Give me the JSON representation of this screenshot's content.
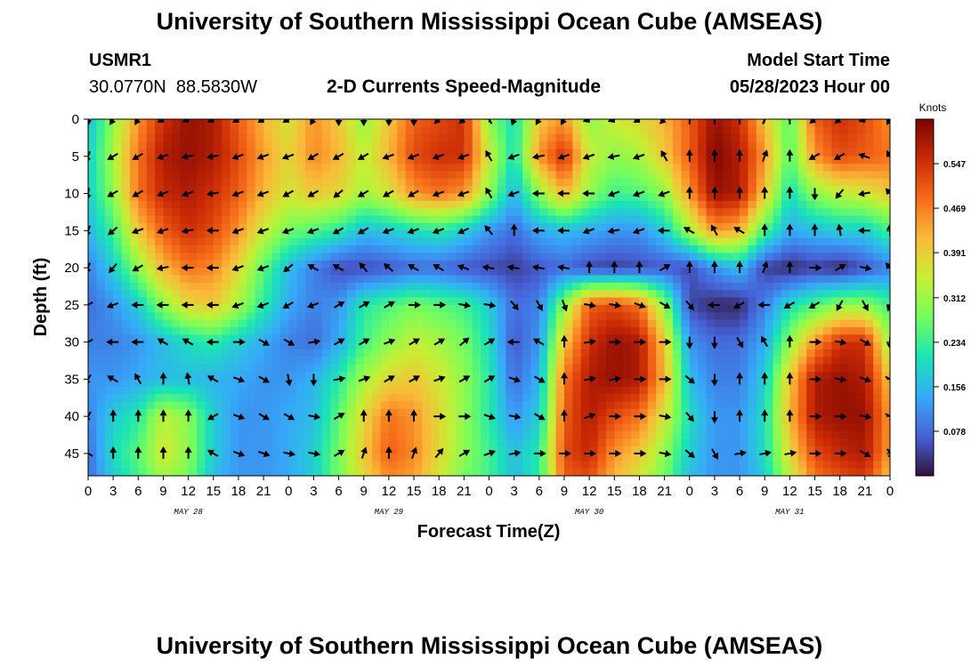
{
  "header": {
    "title": "University of Southern Mississippi Ocean Cube (AMSEAS)",
    "station_name": "USMR1",
    "station_coords": "30.0770N  88.5830W",
    "subtitle": "2-D Currents Speed-Magnitude",
    "model_start_label": "Model Start Time",
    "model_start_value": "05/28/2023 Hour 00"
  },
  "footer": {
    "title": "University of Southern Mississippi Ocean Cube (AMSEAS)"
  },
  "colorbar": {
    "unit": "Knots",
    "ticks": [
      "0.547",
      "0.469",
      "0.391",
      "0.312",
      "0.234",
      "0.156",
      "0.078"
    ],
    "tick_values": [
      0.547,
      0.469,
      0.391,
      0.312,
      0.234,
      0.156,
      0.078
    ],
    "min": 0.0,
    "max": 0.625,
    "colors": [
      "#30123b",
      "#4662d7",
      "#36aaf9",
      "#1ae4b6",
      "#72fe5e",
      "#c7ef34",
      "#faba39",
      "#f66b19",
      "#ca2a04",
      "#7a0403"
    ]
  },
  "chart_data": {
    "type": "heatmap",
    "title": "2-D Currents Speed-Magnitude",
    "xlabel": "Forecast Time(Z)",
    "ylabel": "Depth (ft)",
    "x_hours": [
      0,
      96
    ],
    "xticks": [
      "0",
      "3",
      "6",
      "9",
      "12",
      "15",
      "18",
      "21",
      "0",
      "3",
      "6",
      "9",
      "12",
      "15",
      "18",
      "21",
      "0",
      "3",
      "6",
      "9",
      "12",
      "15",
      "18",
      "21",
      "0",
      "3",
      "6",
      "9",
      "12",
      "15",
      "18",
      "21",
      "0"
    ],
    "day_labels": [
      {
        "label": "MAY 28",
        "hour": 12
      },
      {
        "label": "MAY 29",
        "hour": 36
      },
      {
        "label": "MAY 30",
        "hour": 60
      },
      {
        "label": "MAY 31",
        "hour": 84
      }
    ],
    "ylim": [
      0,
      48
    ],
    "yticks": [
      "0",
      "5",
      "10",
      "15",
      "20",
      "25",
      "30",
      "35",
      "40",
      "45"
    ],
    "ytick_values": [
      0,
      5,
      10,
      15,
      20,
      25,
      30,
      35,
      40,
      45
    ],
    "hours": [
      0,
      3,
      6,
      9,
      12,
      15,
      18,
      21,
      24,
      27,
      30,
      33,
      36,
      39,
      42,
      45,
      48,
      51,
      54,
      57,
      60,
      63,
      66,
      69,
      72,
      75,
      78,
      81,
      84,
      87,
      90,
      93,
      96
    ],
    "depths": [
      0,
      5,
      10,
      15,
      20,
      25,
      30,
      35,
      40,
      45,
      48
    ],
    "speed_knots": [
      [
        0.16,
        0.3,
        0.45,
        0.55,
        0.6,
        0.58,
        0.5,
        0.42,
        0.36,
        0.45,
        0.4,
        0.3,
        0.4,
        0.5,
        0.52,
        0.55,
        0.3,
        0.2,
        0.4,
        0.45,
        0.3,
        0.35,
        0.38,
        0.42,
        0.5,
        0.6,
        0.55,
        0.4,
        0.25,
        0.5,
        0.55,
        0.52,
        0.45
      ],
      [
        0.18,
        0.32,
        0.48,
        0.58,
        0.6,
        0.58,
        0.52,
        0.44,
        0.38,
        0.46,
        0.42,
        0.34,
        0.42,
        0.52,
        0.55,
        0.55,
        0.35,
        0.2,
        0.45,
        0.55,
        0.35,
        0.3,
        0.32,
        0.4,
        0.5,
        0.62,
        0.58,
        0.45,
        0.25,
        0.45,
        0.52,
        0.5,
        0.48
      ],
      [
        0.18,
        0.3,
        0.48,
        0.56,
        0.58,
        0.55,
        0.5,
        0.42,
        0.36,
        0.4,
        0.38,
        0.32,
        0.36,
        0.45,
        0.48,
        0.45,
        0.3,
        0.15,
        0.3,
        0.42,
        0.3,
        0.24,
        0.25,
        0.3,
        0.45,
        0.6,
        0.58,
        0.4,
        0.2,
        0.3,
        0.34,
        0.36,
        0.4
      ],
      [
        0.15,
        0.24,
        0.4,
        0.5,
        0.55,
        0.52,
        0.45,
        0.35,
        0.28,
        0.25,
        0.22,
        0.16,
        0.18,
        0.2,
        0.22,
        0.18,
        0.12,
        0.08,
        0.14,
        0.16,
        0.14,
        0.12,
        0.12,
        0.18,
        0.32,
        0.45,
        0.42,
        0.25,
        0.14,
        0.16,
        0.18,
        0.18,
        0.24
      ],
      [
        0.1,
        0.18,
        0.3,
        0.42,
        0.48,
        0.46,
        0.38,
        0.26,
        0.16,
        0.1,
        0.05,
        0.05,
        0.06,
        0.08,
        0.08,
        0.06,
        0.05,
        0.04,
        0.06,
        0.08,
        0.05,
        0.04,
        0.05,
        0.06,
        0.05,
        0.12,
        0.16,
        0.04,
        0.02,
        0.04,
        0.02,
        0.06,
        0.1
      ],
      [
        0.08,
        0.12,
        0.18,
        0.3,
        0.38,
        0.4,
        0.32,
        0.22,
        0.14,
        0.1,
        0.12,
        0.22,
        0.25,
        0.28,
        0.26,
        0.24,
        0.18,
        0.08,
        0.1,
        0.3,
        0.5,
        0.52,
        0.48,
        0.3,
        0.05,
        0.02,
        0.02,
        0.1,
        0.2,
        0.25,
        0.3,
        0.3,
        0.24
      ],
      [
        0.1,
        0.1,
        0.12,
        0.16,
        0.2,
        0.22,
        0.18,
        0.14,
        0.1,
        0.08,
        0.14,
        0.24,
        0.3,
        0.34,
        0.32,
        0.28,
        0.2,
        0.06,
        0.12,
        0.4,
        0.55,
        0.6,
        0.58,
        0.4,
        0.12,
        0.08,
        0.08,
        0.14,
        0.3,
        0.45,
        0.55,
        0.55,
        0.3
      ],
      [
        0.12,
        0.12,
        0.14,
        0.16,
        0.16,
        0.15,
        0.14,
        0.12,
        0.12,
        0.15,
        0.22,
        0.32,
        0.38,
        0.4,
        0.36,
        0.3,
        0.22,
        0.08,
        0.15,
        0.48,
        0.58,
        0.6,
        0.58,
        0.42,
        0.16,
        0.1,
        0.1,
        0.18,
        0.4,
        0.58,
        0.6,
        0.58,
        0.4
      ],
      [
        0.1,
        0.18,
        0.22,
        0.34,
        0.3,
        0.18,
        0.12,
        0.12,
        0.14,
        0.16,
        0.26,
        0.38,
        0.48,
        0.45,
        0.38,
        0.3,
        0.22,
        0.12,
        0.18,
        0.5,
        0.58,
        0.52,
        0.48,
        0.36,
        0.2,
        0.12,
        0.12,
        0.2,
        0.42,
        0.58,
        0.6,
        0.6,
        0.44
      ],
      [
        0.08,
        0.2,
        0.26,
        0.36,
        0.3,
        0.18,
        0.12,
        0.12,
        0.14,
        0.18,
        0.28,
        0.4,
        0.5,
        0.46,
        0.38,
        0.3,
        0.24,
        0.16,
        0.22,
        0.52,
        0.56,
        0.45,
        0.4,
        0.3,
        0.18,
        0.12,
        0.12,
        0.2,
        0.38,
        0.52,
        0.56,
        0.58,
        0.44
      ],
      [
        0.08,
        0.18,
        0.24,
        0.32,
        0.28,
        0.16,
        0.12,
        0.12,
        0.14,
        0.18,
        0.28,
        0.38,
        0.46,
        0.44,
        0.36,
        0.28,
        0.24,
        0.16,
        0.22,
        0.5,
        0.52,
        0.42,
        0.36,
        0.28,
        0.16,
        0.12,
        0.12,
        0.18,
        0.34,
        0.48,
        0.52,
        0.54,
        0.4
      ]
    ],
    "arrow_depths": [
      0,
      5,
      10,
      15,
      20,
      25,
      30,
      35,
      40,
      45
    ],
    "arrow_directions_deg": [
      [
        180,
        210,
        210,
        240,
        240,
        240,
        240,
        240,
        240,
        210,
        180,
        180,
        180,
        180,
        225,
        225,
        330,
        200,
        210,
        210,
        250,
        250,
        240,
        225,
        0,
        0,
        0,
        20,
        0,
        230,
        230,
        250,
        210
      ],
      [
        200,
        240,
        240,
        250,
        260,
        260,
        250,
        250,
        250,
        240,
        240,
        240,
        250,
        250,
        250,
        250,
        330,
        250,
        260,
        250,
        250,
        260,
        250,
        330,
        0,
        0,
        0,
        20,
        0,
        240,
        240,
        290,
        330
      ],
      [
        190,
        240,
        240,
        250,
        250,
        260,
        250,
        250,
        240,
        240,
        230,
        240,
        240,
        240,
        250,
        250,
        330,
        250,
        270,
        270,
        270,
        250,
        250,
        250,
        0,
        0,
        0,
        0,
        0,
        180,
        220,
        260,
        320
      ],
      [
        200,
        230,
        250,
        250,
        260,
        270,
        250,
        250,
        250,
        250,
        240,
        240,
        250,
        250,
        250,
        245,
        320,
        0,
        270,
        270,
        250,
        260,
        250,
        270,
        300,
        330,
        300,
        0,
        0,
        0,
        350,
        270,
        0
      ],
      [
        200,
        220,
        240,
        260,
        270,
        270,
        250,
        250,
        230,
        300,
        300,
        320,
        310,
        300,
        300,
        290,
        280,
        280,
        280,
        280,
        0,
        0,
        0,
        60,
        0,
        0,
        0,
        20,
        0,
        90,
        60,
        100,
        320
      ],
      [
        240,
        250,
        270,
        270,
        270,
        270,
        250,
        250,
        240,
        250,
        60,
        60,
        60,
        90,
        90,
        100,
        100,
        140,
        150,
        160,
        100,
        100,
        110,
        120,
        140,
        270,
        240,
        270,
        240,
        240,
        210,
        150,
        200
      ],
      [
        240,
        270,
        270,
        300,
        300,
        270,
        90,
        120,
        120,
        80,
        60,
        60,
        70,
        60,
        60,
        50,
        60,
        270,
        300,
        0,
        80,
        90,
        90,
        90,
        180,
        180,
        150,
        330,
        0,
        90,
        100,
        120,
        180
      ],
      [
        210,
        300,
        330,
        0,
        350,
        300,
        110,
        120,
        170,
        180,
        80,
        70,
        60,
        60,
        70,
        60,
        60,
        110,
        120,
        0,
        80,
        80,
        90,
        90,
        130,
        180,
        0,
        0,
        0,
        90,
        100,
        110,
        120
      ],
      [
        210,
        0,
        0,
        0,
        0,
        240,
        110,
        120,
        120,
        100,
        60,
        0,
        0,
        0,
        90,
        90,
        110,
        100,
        120,
        0,
        70,
        90,
        90,
        100,
        140,
        180,
        0,
        0,
        0,
        90,
        90,
        100,
        120
      ],
      [
        300,
        0,
        0,
        0,
        0,
        300,
        110,
        110,
        100,
        100,
        60,
        20,
        0,
        20,
        40,
        60,
        70,
        80,
        90,
        90,
        90,
        90,
        90,
        100,
        130,
        150,
        80,
        80,
        80,
        90,
        90,
        120,
        150
      ]
    ]
  }
}
